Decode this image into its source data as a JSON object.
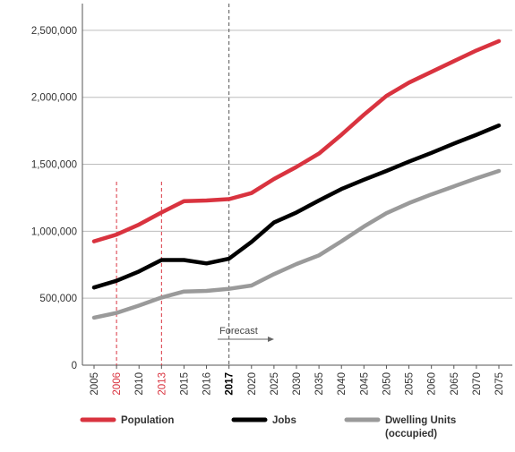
{
  "chart_data": {
    "type": "line",
    "categories": [
      "2005",
      "2006",
      "2010",
      "2013",
      "2015",
      "2016",
      "2017",
      "2020",
      "2025",
      "2030",
      "2035",
      "2040",
      "2045",
      "2050",
      "2055",
      "2060",
      "2065",
      "2070",
      "2075"
    ],
    "highlighted_categories": {
      "2006": "#d9333f",
      "2013": "#d9333f",
      "2017": "#000000"
    },
    "ylim": [
      0,
      2700000
    ],
    "yticks": [
      0,
      500000,
      1000000,
      1500000,
      2000000,
      2500000
    ],
    "ytick_labels": [
      "0",
      "500,000",
      "1,000,000",
      "1,500,000",
      "2,000,000",
      "2,500,000"
    ],
    "grid": true,
    "legend_position": "bottom",
    "series": [
      {
        "name": "Population",
        "color": "#d9333f",
        "values": [
          925000,
          975000,
          1050000,
          1140000,
          1225000,
          1230000,
          1240000,
          1285000,
          1390000,
          1480000,
          1580000,
          1720000,
          1870000,
          2010000,
          2110000,
          2190000,
          2270000,
          2350000,
          2420000
        ]
      },
      {
        "name": "Jobs",
        "color": "#000000",
        "values": [
          580000,
          630000,
          700000,
          785000,
          785000,
          760000,
          795000,
          920000,
          1065000,
          1140000,
          1230000,
          1315000,
          1385000,
          1450000,
          1520000,
          1585000,
          1655000,
          1720000,
          1790000
        ]
      },
      {
        "name": "Dwelling Units\n(occupied)",
        "color": "#9a9a9a",
        "values": [
          355000,
          390000,
          445000,
          505000,
          550000,
          555000,
          570000,
          595000,
          680000,
          755000,
          820000,
          925000,
          1035000,
          1135000,
          1210000,
          1275000,
          1335000,
          1395000,
          1450000
        ]
      }
    ],
    "annotations": {
      "forecast_label": "Forecast",
      "dashed_markers": [
        {
          "category": "2006",
          "color": "#d9333f"
        },
        {
          "category": "2013",
          "color": "#d9333f"
        },
        {
          "category": "2017",
          "color": "#555555"
        }
      ]
    },
    "legend": {
      "population": "Population",
      "jobs": "Jobs",
      "dwelling_line1": "Dwelling Units",
      "dwelling_line2": "(occupied)"
    }
  }
}
